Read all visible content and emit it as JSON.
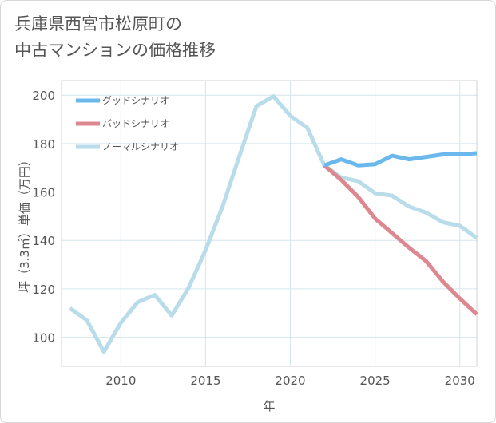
{
  "title": {
    "line1": "兵庫県西宮市松原町の",
    "line2": "中古マンションの価格推移"
  },
  "chart_data": {
    "type": "line",
    "xlabel": "年",
    "ylabel": "坪（3.3㎡）単価（万円）",
    "xlim": [
      2006.5,
      2031
    ],
    "ylim": [
      88,
      206
    ],
    "x_ticks": [
      2010,
      2015,
      2020,
      2025,
      2030
    ],
    "y_ticks": [
      100,
      120,
      140,
      160,
      180,
      200
    ],
    "grid": true,
    "legend_position": "top-left",
    "series": [
      {
        "name": "グッドシナリオ",
        "color": "#6bb8ed",
        "x": [
          2022,
          2023,
          2024,
          2025,
          2026,
          2027,
          2028,
          2029,
          2030,
          2031
        ],
        "y": [
          171,
          173.5,
          171,
          171.5,
          175,
          173.5,
          174.5,
          175.5,
          175.5,
          176
        ]
      },
      {
        "name": "バッドシナリオ",
        "color": "#dd8890",
        "x": [
          2022,
          2023,
          2024,
          2025,
          2026,
          2027,
          2028,
          2029,
          2030,
          2031
        ],
        "y": [
          171,
          165,
          158,
          149,
          143,
          137,
          131.5,
          123,
          116,
          109.5
        ]
      },
      {
        "name": "ノーマルシナリオ",
        "color": "#b9dcea",
        "x": [
          2007,
          2008,
          2009,
          2010,
          2011,
          2012,
          2013,
          2014,
          2015,
          2016,
          2017,
          2018,
          2019,
          2020,
          2021,
          2022,
          2023,
          2024,
          2025,
          2026,
          2027,
          2028,
          2029,
          2030,
          2031
        ],
        "y": [
          112,
          107,
          94,
          106,
          114.5,
          117.5,
          109,
          120.5,
          136,
          154,
          175,
          195.5,
          199.5,
          191.5,
          186.5,
          171,
          166,
          164.5,
          159.5,
          158.5,
          154,
          151.5,
          147.5,
          146,
          141
        ]
      }
    ]
  }
}
